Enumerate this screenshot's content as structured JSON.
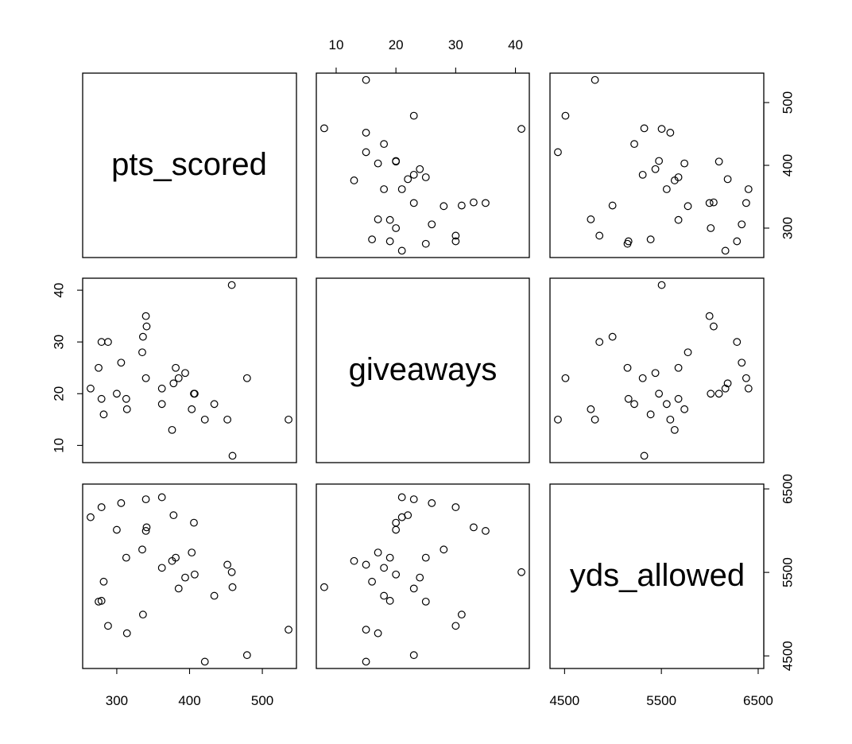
{
  "chart_data": {
    "type": "scatter",
    "kind": "pairs",
    "variables": [
      "pts_scored",
      "giveaways",
      "yds_allowed"
    ],
    "ranges": {
      "pts_scored": [
        264,
        536
      ],
      "giveaways": [
        8,
        41
      ],
      "yds_allowed": [
        4431,
        6476
      ]
    },
    "axis_ticks": {
      "pts_scored": [
        300,
        400,
        500
      ],
      "giveaways": [
        10,
        20,
        30,
        40
      ],
      "yds_allowed": [
        4500,
        5500,
        6500
      ],
      "yds_allowed_top": [
        4500,
        5500,
        6500
      ]
    },
    "axis_tick_labels": {
      "pts_scored": [
        "300",
        "400",
        "500"
      ],
      "giveaways": [
        "10",
        "20",
        "30",
        "40"
      ],
      "yds_allowed_right": [
        "4500",
        "5500",
        "6500"
      ],
      "yds_allowed_bottom": [
        "4500",
        "5500",
        "6500"
      ]
    },
    "points": [
      {
        "pts_scored": 536,
        "giveaways": 15,
        "yds_allowed": 4814
      },
      {
        "pts_scored": 479,
        "giveaways": 23,
        "yds_allowed": 4509
      },
      {
        "pts_scored": 459,
        "giveaways": 8,
        "yds_allowed": 5323
      },
      {
        "pts_scored": 458,
        "giveaways": 41,
        "yds_allowed": 5503
      },
      {
        "pts_scored": 452,
        "giveaways": 15,
        "yds_allowed": 5592
      },
      {
        "pts_scored": 434,
        "giveaways": 18,
        "yds_allowed": 5220
      },
      {
        "pts_scored": 421,
        "giveaways": 15,
        "yds_allowed": 4431
      },
      {
        "pts_scored": 407,
        "giveaways": 20,
        "yds_allowed": 5475
      },
      {
        "pts_scored": 406,
        "giveaways": 20,
        "yds_allowed": 6095
      },
      {
        "pts_scored": 403,
        "giveaways": 17,
        "yds_allowed": 5738
      },
      {
        "pts_scored": 394,
        "giveaways": 24,
        "yds_allowed": 5438
      },
      {
        "pts_scored": 385,
        "giveaways": 23,
        "yds_allowed": 5307
      },
      {
        "pts_scored": 381,
        "giveaways": 25,
        "yds_allowed": 5676
      },
      {
        "pts_scored": 378,
        "giveaways": 22,
        "yds_allowed": 6185
      },
      {
        "pts_scored": 376,
        "giveaways": 13,
        "yds_allowed": 5637
      },
      {
        "pts_scored": 362,
        "giveaways": 21,
        "yds_allowed": 6400
      },
      {
        "pts_scored": 362,
        "giveaways": 18,
        "yds_allowed": 5555
      },
      {
        "pts_scored": 341,
        "giveaways": 33,
        "yds_allowed": 6040
      },
      {
        "pts_scored": 340,
        "giveaways": 35,
        "yds_allowed": 5997
      },
      {
        "pts_scored": 340,
        "giveaways": 23,
        "yds_allowed": 6376
      },
      {
        "pts_scored": 336,
        "giveaways": 31,
        "yds_allowed": 4995
      },
      {
        "pts_scored": 335,
        "giveaways": 28,
        "yds_allowed": 5774
      },
      {
        "pts_scored": 314,
        "giveaways": 17,
        "yds_allowed": 4771
      },
      {
        "pts_scored": 313,
        "giveaways": 19,
        "yds_allowed": 5676
      },
      {
        "pts_scored": 306,
        "giveaways": 26,
        "yds_allowed": 6330
      },
      {
        "pts_scored": 300,
        "giveaways": 20,
        "yds_allowed": 6010
      },
      {
        "pts_scored": 288,
        "giveaways": 30,
        "yds_allowed": 4860
      },
      {
        "pts_scored": 282,
        "giveaways": 16,
        "yds_allowed": 5389
      },
      {
        "pts_scored": 279,
        "giveaways": 19,
        "yds_allowed": 5160
      },
      {
        "pts_scored": 279,
        "giveaways": 30,
        "yds_allowed": 6281
      },
      {
        "pts_scored": 275,
        "giveaways": 25,
        "yds_allowed": 5150
      },
      {
        "pts_scored": 264,
        "giveaways": 21,
        "yds_allowed": 6161
      }
    ]
  }
}
